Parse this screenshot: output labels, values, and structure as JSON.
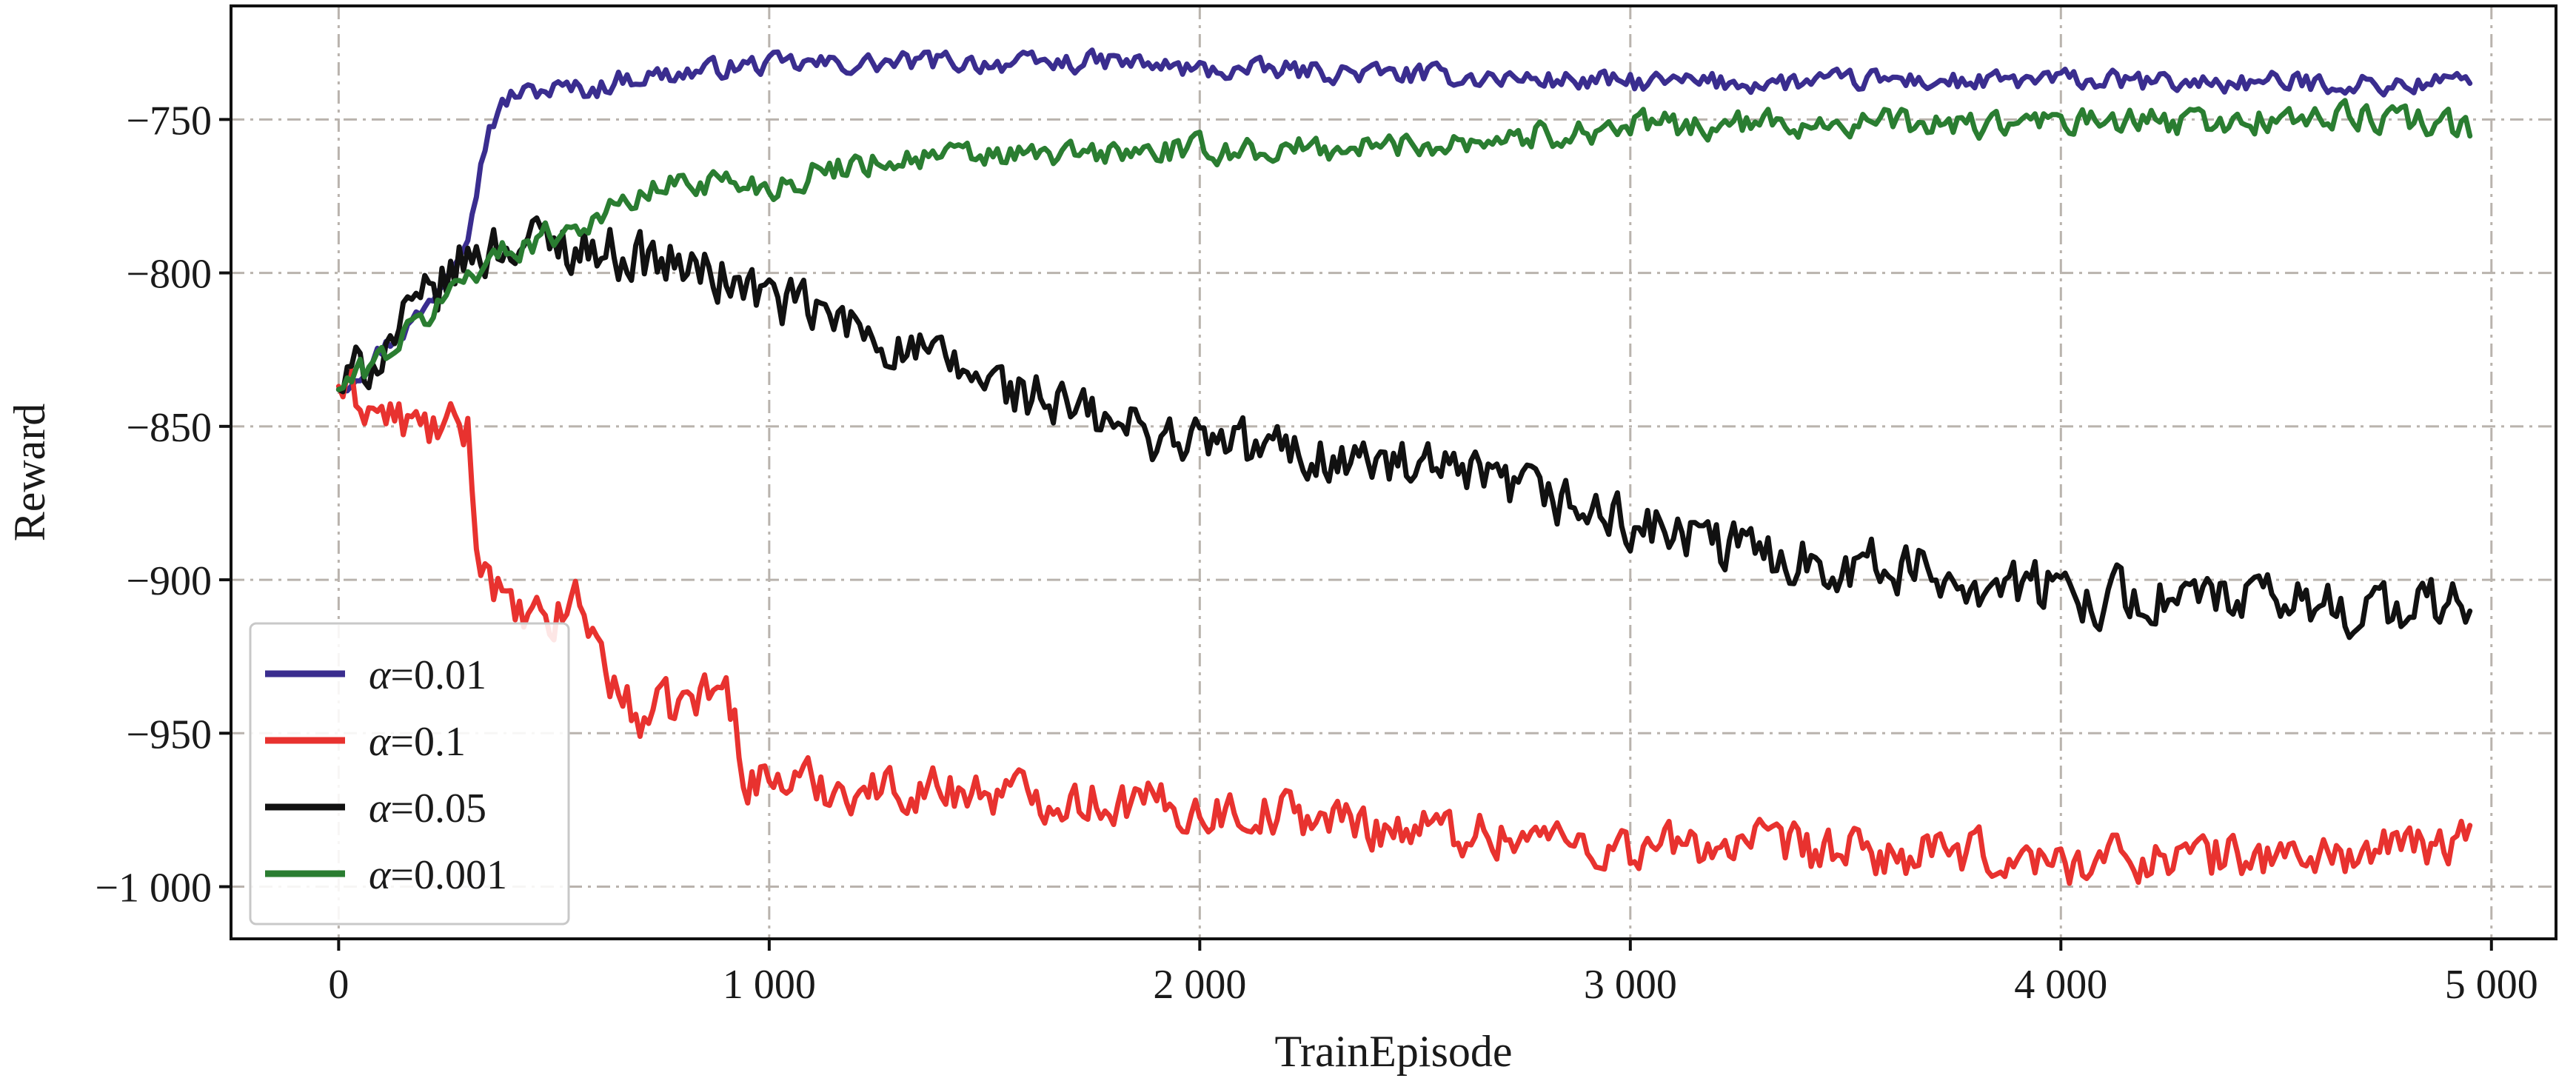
{
  "chart_data": {
    "type": "line",
    "title": "",
    "xlabel": "TrainEpisode",
    "ylabel": "Reward",
    "xlim": [
      -250,
      5150
    ],
    "ylim": [
      -1017,
      -713
    ],
    "x_ticks": [
      0,
      1000,
      2000,
      3000,
      4000,
      5000
    ],
    "x_tick_labels": [
      "0",
      "1 000",
      "2 000",
      "3 000",
      "4 000",
      "5 000"
    ],
    "y_ticks": [
      -750,
      -800,
      -850,
      -900,
      -950,
      -1000
    ],
    "y_tick_labels": [
      "−750",
      "−800",
      "−850",
      "−900",
      "−950",
      "−1 000"
    ],
    "grid": true,
    "legend_position": "lower-left",
    "series": [
      {
        "name": "α=0.01",
        "label_symbol": "α",
        "label_value": "=0.01",
        "color": "#3a2d8f",
        "x": [
          0,
          100,
          200,
          250,
          300,
          350,
          400,
          500,
          600,
          650,
          700,
          800,
          900,
          1000,
          1200,
          1400,
          1600,
          1800,
          2000,
          2200,
          2400,
          2600,
          2800,
          3000,
          3200,
          3400,
          3600,
          3800,
          4000,
          4200,
          4400,
          4600,
          4800,
          4950
        ],
        "y": [
          -838,
          -825,
          -812,
          -800,
          -785,
          -752,
          -742,
          -740,
          -740,
          -737,
          -736,
          -735,
          -733,
          -732,
          -732,
          -731,
          -732,
          -731,
          -734,
          -734,
          -735,
          -736,
          -737,
          -738,
          -738,
          -738,
          -737,
          -738,
          -737,
          -738,
          -738,
          -738,
          -739,
          -737
        ],
        "noise": 3
      },
      {
        "name": "α=0.1",
        "label_symbol": "α",
        "label_value": "=0.1",
        "color": "#e8322f",
        "x": [
          0,
          100,
          200,
          300,
          320,
          400,
          500,
          550,
          600,
          650,
          700,
          800,
          900,
          950,
          1000,
          1200,
          1400,
          1600,
          1800,
          2000,
          2200,
          2400,
          2600,
          2800,
          3000,
          3200,
          3400,
          3600,
          3800,
          4000,
          4200,
          4400,
          4600,
          4800,
          4950
        ],
        "y": [
          -837,
          -846,
          -851,
          -851,
          -888,
          -912,
          -915,
          -905,
          -920,
          -938,
          -945,
          -940,
          -935,
          -965,
          -965,
          -968,
          -968,
          -970,
          -972,
          -975,
          -976,
          -980,
          -982,
          -984,
          -988,
          -986,
          -988,
          -990,
          -990,
          -992,
          -990,
          -990,
          -990,
          -988,
          -985
        ],
        "noise": 7
      },
      {
        "name": "α=0.05",
        "label_symbol": "α",
        "label_value": "=0.05",
        "color": "#111111",
        "x": [
          0,
          100,
          200,
          300,
          400,
          500,
          600,
          700,
          800,
          900,
          1000,
          1200,
          1400,
          1600,
          1800,
          2000,
          2200,
          2400,
          2600,
          2800,
          3000,
          3200,
          3400,
          3600,
          3800,
          4000,
          4200,
          4400,
          4600,
          4800,
          4950
        ],
        "y": [
          -838,
          -825,
          -810,
          -795,
          -790,
          -790,
          -792,
          -795,
          -798,
          -802,
          -808,
          -818,
          -830,
          -840,
          -850,
          -855,
          -858,
          -862,
          -867,
          -873,
          -882,
          -889,
          -893,
          -896,
          -900,
          -904,
          -906,
          -907,
          -908,
          -910,
          -907
        ],
        "noise": 8
      },
      {
        "name": "α=0.001",
        "label_symbol": "α",
        "label_value": "=0.001",
        "color": "#2a7d31",
        "x": [
          0,
          100,
          200,
          300,
          400,
          500,
          600,
          700,
          800,
          900,
          1000,
          1200,
          1400,
          1600,
          1800,
          2000,
          2200,
          2400,
          2600,
          2800,
          3000,
          3200,
          3400,
          3600,
          3800,
          4000,
          4200,
          4400,
          4600,
          4800,
          4950
        ],
        "y": [
          -838,
          -827,
          -815,
          -800,
          -792,
          -787,
          -782,
          -775,
          -770,
          -770,
          -772,
          -764,
          -762,
          -762,
          -761,
          -760,
          -760,
          -759,
          -757,
          -755,
          -752,
          -752,
          -751,
          -751,
          -752,
          -751,
          -751,
          -751,
          -749,
          -750,
          -753
        ],
        "noise": 4
      }
    ]
  }
}
